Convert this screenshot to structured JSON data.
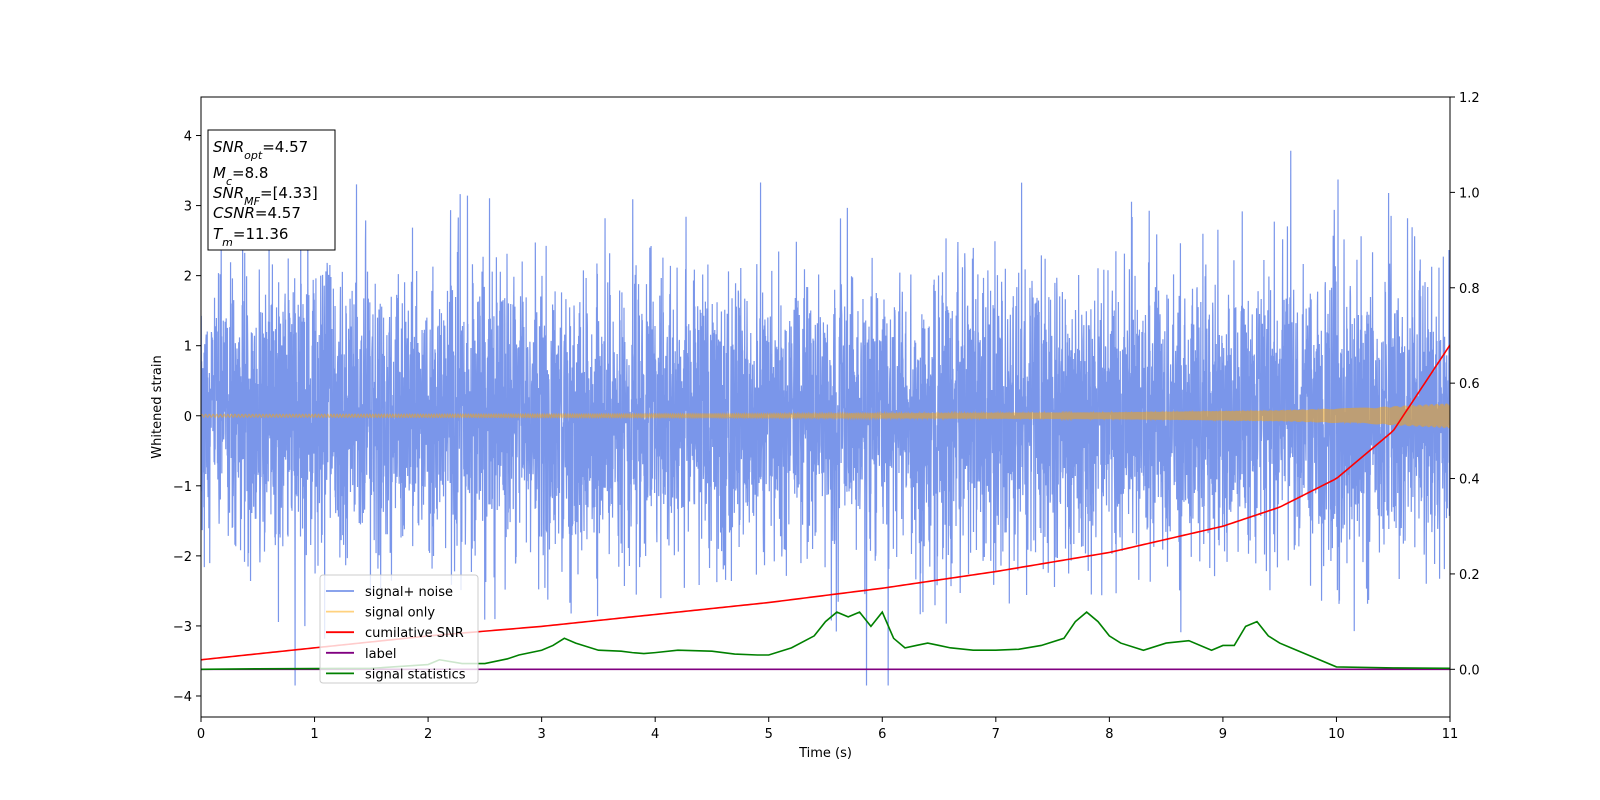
{
  "chart_data": {
    "type": "line",
    "title": "",
    "xlabel": "Time (s)",
    "ylabel": "Whitened strain",
    "xlim": [
      0,
      11
    ],
    "ylim": [
      -4.3,
      4.55
    ],
    "y2lim": [
      -0.1,
      1.2
    ],
    "x_ticks": [
      0,
      1,
      2,
      3,
      4,
      5,
      6,
      7,
      8,
      9,
      10,
      11
    ],
    "y_ticks": [
      -4,
      -3,
      -2,
      -1,
      0,
      1,
      2,
      3,
      4
    ],
    "y2_ticks": [
      0.0,
      0.2,
      0.4,
      0.6,
      0.8,
      1.0,
      1.2
    ],
    "y2_tick_labels": [
      "0.0",
      "0.2",
      "0.4",
      "0.6",
      "0.8",
      "1.0",
      "1.2"
    ],
    "grid": false,
    "legend_position": "lower-left",
    "annotation": [
      {
        "base": "SNR",
        "sub": "opt",
        "rest": "=4.57"
      },
      {
        "base": "M",
        "sub": "c",
        "rest": "=8.8"
      },
      {
        "base": "SNR",
        "sub": "MF",
        "rest": "=[4.33]"
      },
      {
        "base": "CSNR",
        "sub": "",
        "rest": "=4.57"
      },
      {
        "base": "T",
        "sub": "m",
        "rest": "=11.36"
      }
    ],
    "series": [
      {
        "name": "signal+ noise",
        "color": "#4169e1",
        "axis": "left",
        "kind": "noise",
        "noise_std": 1.0,
        "clip_range": [
          -3.85,
          4.15
        ]
      },
      {
        "name": "signal only",
        "color": "#ffa500",
        "axis": "left",
        "kind": "chirp",
        "envelope_x": [
          0,
          5,
          8,
          9.5,
          10.3,
          11
        ],
        "envelope_y": [
          0.02,
          0.03,
          0.05,
          0.08,
          0.12,
          0.18
        ]
      },
      {
        "name": "cumilative SNR",
        "color": "#ff0000",
        "axis": "right",
        "x": [
          0,
          1,
          2,
          3,
          4,
          5,
          6,
          7,
          8,
          9,
          9.5,
          10,
          10.5,
          11
        ],
        "y": [
          0.02,
          0.045,
          0.07,
          0.09,
          0.115,
          0.14,
          0.17,
          0.205,
          0.245,
          0.3,
          0.34,
          0.4,
          0.5,
          0.68
        ]
      },
      {
        "name": "label",
        "color": "#800080",
        "axis": "right",
        "x": [
          0,
          11
        ],
        "y": [
          0.0,
          0.0
        ]
      },
      {
        "name": "signal statistics",
        "color": "#008000",
        "axis": "right",
        "x": [
          0,
          0.5,
          1.5,
          2,
          2.1,
          2.3,
          2.5,
          2.7,
          2.8,
          3.0,
          3.1,
          3.2,
          3.3,
          3.5,
          3.7,
          3.8,
          3.9,
          4.0,
          4.2,
          4.5,
          4.7,
          4.9,
          5.0,
          5.2,
          5.4,
          5.5,
          5.6,
          5.7,
          5.8,
          5.9,
          6.0,
          6.1,
          6.2,
          6.3,
          6.4,
          6.5,
          6.6,
          6.8,
          7.0,
          7.2,
          7.4,
          7.6,
          7.7,
          7.8,
          7.9,
          8.0,
          8.1,
          8.3,
          8.5,
          8.7,
          8.9,
          9.0,
          9.1,
          9.2,
          9.3,
          9.4,
          9.5,
          9.6,
          9.8,
          10.0,
          10.5,
          11.0
        ],
        "y": [
          0.0,
          0.001,
          0.002,
          0.01,
          0.02,
          0.012,
          0.012,
          0.022,
          0.03,
          0.04,
          0.05,
          0.065,
          0.055,
          0.04,
          0.038,
          0.035,
          0.033,
          0.035,
          0.04,
          0.038,
          0.032,
          0.03,
          0.03,
          0.045,
          0.07,
          0.1,
          0.12,
          0.11,
          0.12,
          0.09,
          0.12,
          0.065,
          0.045,
          0.05,
          0.055,
          0.05,
          0.045,
          0.04,
          0.04,
          0.042,
          0.05,
          0.065,
          0.1,
          0.12,
          0.1,
          0.07,
          0.055,
          0.04,
          0.055,
          0.06,
          0.04,
          0.05,
          0.05,
          0.09,
          0.1,
          0.07,
          0.055,
          0.045,
          0.025,
          0.005,
          0.003,
          0.002
        ]
      }
    ]
  }
}
